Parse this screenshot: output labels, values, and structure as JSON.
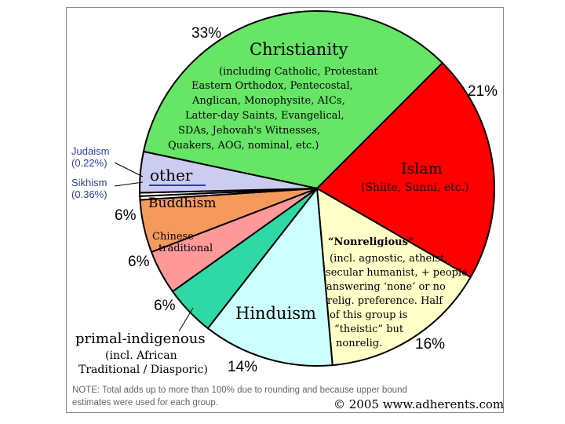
{
  "chart_data": {
    "type": "pie",
    "slices": [
      {
        "key": "christianity",
        "label": "Christianity",
        "pct_label": "33%",
        "value": 33,
        "color": "#66e566"
      },
      {
        "key": "islam",
        "label": "Islam",
        "pct_label": "21%",
        "value": 21,
        "color": "#ff0000"
      },
      {
        "key": "nonreligious",
        "label": "“Nonreligious”",
        "pct_label": "16%",
        "value": 16,
        "color": "#ffffc8"
      },
      {
        "key": "hinduism",
        "label": "Hinduism",
        "pct_label": "14%",
        "value": 14,
        "color": "#ccffff"
      },
      {
        "key": "primal",
        "label": "primal-indigenous",
        "pct_label": "6%",
        "value": 6,
        "color": "#2ed9a6"
      },
      {
        "key": "chinese",
        "label": "Chinese traditional",
        "pct_label": "6%",
        "value": 6,
        "color": "#ff9999"
      },
      {
        "key": "buddhism",
        "label": "Buddhism",
        "pct_label": "6%",
        "value": 6,
        "color": "#f59a5c"
      },
      {
        "key": "sikhism",
        "label": "Sikhism",
        "pct_label": "(0.36%)",
        "value": 0.36,
        "color": "#ffffff"
      },
      {
        "key": "judaism",
        "label": "Judaism",
        "pct_label": "(0.22%)",
        "value": 0.22,
        "color": "#ffffff"
      },
      {
        "key": "other",
        "label": "other",
        "pct_label": "",
        "value": 4,
        "color": "#ccccf0"
      }
    ],
    "pie_edge_color": "#000000"
  },
  "text": {
    "christianity_title": "Christianity",
    "christianity_note": [
      "(including Catholic, Protestant",
      "Eastern Orthodox, Pentecostal,",
      "Anglican, Monophysite, AICs,",
      "Latter-day Saints, Evangelical,",
      "SDAs, Jehovah's Witnesses,",
      "Quakers, AOG, nominal, etc.)"
    ],
    "christianity_pct": "33%",
    "islam_title": "Islam",
    "islam_note": "(Shiite, Sunni, etc.)",
    "islam_pct": "21%",
    "nonrel_title": "“Nonreligious”",
    "nonrel_note": [
      "(incl. agnostic, atheist,",
      "secular humanist, + people",
      "answering ‘none’ or no",
      "relig. preference. Half",
      "of this group is",
      "“theistic” but",
      "nonrelig."
    ],
    "nonrel_pct": "16%",
    "hinduism_title": "Hinduism",
    "hinduism_pct": "14%",
    "primal_title": "primal-indigenous",
    "primal_note": [
      "(incl. African",
      "Traditional / Diasporic)"
    ],
    "primal_pct": "6%",
    "chinese_title": [
      "Chinese",
      "traditional"
    ],
    "chinese_pct": "6%",
    "buddhism_title": "Buddhism",
    "buddhism_pct": "6%",
    "other_title": "other",
    "sikhism_label": "Sikhism",
    "sikhism_pct": "(0.36%)",
    "judaism_label": "Judaism",
    "judaism_pct": "(0.22%)",
    "note": [
      "NOTE: Total adds up to more than 100% due to rounding and because upper bound",
      "estimates were used for each group."
    ],
    "copyright": "© 2005 www.adherents.com"
  }
}
